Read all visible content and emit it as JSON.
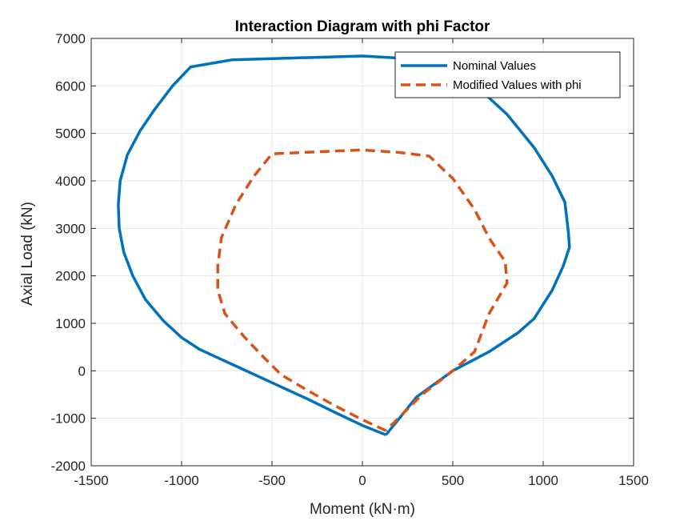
{
  "chart_data": {
    "type": "line",
    "title": "Interaction Diagram with phi Factor",
    "xlabel": "Moment (kN·m)",
    "ylabel": "Axial Load (kN)",
    "xlim": [
      -1500,
      1500
    ],
    "ylim": [
      -2000,
      7000
    ],
    "x_ticks": [
      "-1500",
      "-1000",
      "-500",
      "0",
      "500",
      "1000",
      "1500"
    ],
    "y_ticks": [
      "-2000",
      "-1000",
      "0",
      "1000",
      "2000",
      "3000",
      "4000",
      "5000",
      "6000",
      "7000"
    ],
    "grid": true,
    "legend_position": "top-right",
    "colors": {
      "nominal": "#0072BD",
      "modified": "#D95319",
      "grid": "#e6e6e6",
      "axis": "#262626"
    },
    "series": [
      {
        "name": "Nominal Values",
        "style": "solid",
        "points": [
          [
            130,
            -1350
          ],
          [
            0,
            -1150
          ],
          [
            -150,
            -880
          ],
          [
            -300,
            -600
          ],
          [
            -500,
            -250
          ],
          [
            -700,
            100
          ],
          [
            -900,
            450
          ],
          [
            -1000,
            700
          ],
          [
            -1100,
            1050
          ],
          [
            -1200,
            1500
          ],
          [
            -1270,
            2000
          ],
          [
            -1320,
            2500
          ],
          [
            -1345,
            3000
          ],
          [
            -1350,
            3500
          ],
          [
            -1340,
            4000
          ],
          [
            -1300,
            4550
          ],
          [
            -1230,
            5050
          ],
          [
            -1150,
            5500
          ],
          [
            -1050,
            6000
          ],
          [
            -950,
            6400
          ],
          [
            -720,
            6550
          ],
          [
            0,
            6630
          ],
          [
            280,
            6570
          ],
          [
            600,
            6100
          ],
          [
            800,
            5400
          ],
          [
            950,
            4700
          ],
          [
            1050,
            4100
          ],
          [
            1120,
            3550
          ],
          [
            1140,
            2900
          ],
          [
            1145,
            2600
          ],
          [
            1110,
            2200
          ],
          [
            1050,
            1700
          ],
          [
            950,
            1100
          ],
          [
            860,
            800
          ],
          [
            700,
            400
          ],
          [
            500,
            0
          ],
          [
            300,
            -550
          ],
          [
            130,
            -1350
          ]
        ]
      },
      {
        "name": "Modified Values with phi",
        "style": "dashed",
        "points": [
          [
            130,
            -1260
          ],
          [
            0,
            -1030
          ],
          [
            -150,
            -740
          ],
          [
            -300,
            -420
          ],
          [
            -450,
            -80
          ],
          [
            -550,
            300
          ],
          [
            -650,
            700
          ],
          [
            -760,
            1200
          ],
          [
            -800,
            1700
          ],
          [
            -800,
            2200
          ],
          [
            -780,
            2800
          ],
          [
            -700,
            3500
          ],
          [
            -600,
            4100
          ],
          [
            -500,
            4570
          ],
          [
            -200,
            4620
          ],
          [
            0,
            4650
          ],
          [
            200,
            4600
          ],
          [
            370,
            4520
          ],
          [
            500,
            4050
          ],
          [
            620,
            3400
          ],
          [
            700,
            2800
          ],
          [
            790,
            2300
          ],
          [
            800,
            1850
          ],
          [
            700,
            1200
          ],
          [
            660,
            800
          ],
          [
            620,
            400
          ],
          [
            500,
            0
          ],
          [
            330,
            -500
          ],
          [
            130,
            -1260
          ]
        ]
      }
    ]
  }
}
